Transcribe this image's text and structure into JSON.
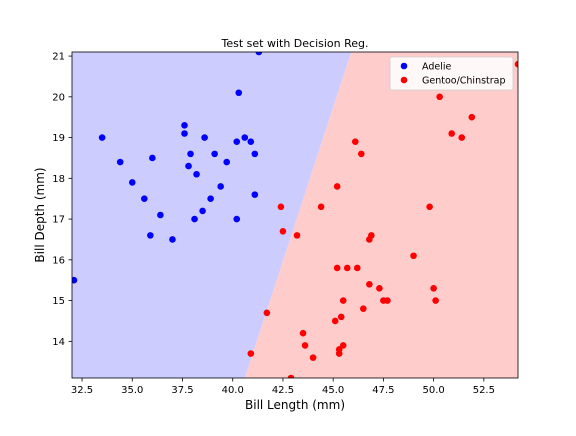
{
  "chart_data": {
    "type": "scatter",
    "title": "Test set with Decision Reg.",
    "xlabel": "Bill Length (mm)",
    "ylabel": "Bill Depth (mm)",
    "xlim": [
      32.0,
      54.2
    ],
    "ylim": [
      13.1,
      21.1
    ],
    "xticks": [
      32.5,
      35.0,
      37.5,
      40.0,
      42.5,
      45.0,
      47.5,
      50.0,
      52.5
    ],
    "xtick_labels": [
      "32.5",
      "35.0",
      "37.5",
      "40.0",
      "42.5",
      "45.0",
      "47.5",
      "50.0",
      "52.5"
    ],
    "yticks": [
      14,
      15,
      16,
      17,
      18,
      19,
      20,
      21
    ],
    "ytick_labels": [
      "14",
      "15",
      "16",
      "17",
      "18",
      "19",
      "20",
      "21"
    ],
    "legend_position": "top-right",
    "decision_regions": {
      "boundary": [
        [
          40.6,
          13.1
        ],
        [
          45.9,
          21.1
        ]
      ],
      "left_class": "Adelie",
      "right_class": "Gentoo/Chinstrap",
      "left_color": "#ccccff",
      "right_color": "#ffcccc"
    },
    "series": [
      {
        "name": "Adelie",
        "color": "#0000ff",
        "points": [
          [
            32.1,
            15.5
          ],
          [
            33.5,
            19.0
          ],
          [
            34.4,
            18.4
          ],
          [
            35.0,
            17.9
          ],
          [
            35.6,
            17.5
          ],
          [
            35.9,
            16.6
          ],
          [
            36.0,
            18.5
          ],
          [
            36.4,
            17.1
          ],
          [
            37.0,
            16.5
          ],
          [
            37.6,
            19.1
          ],
          [
            37.6,
            19.3
          ],
          [
            37.8,
            18.3
          ],
          [
            37.9,
            18.6
          ],
          [
            38.1,
            17.0
          ],
          [
            38.2,
            18.1
          ],
          [
            38.5,
            17.2
          ],
          [
            38.6,
            19.0
          ],
          [
            38.9,
            17.5
          ],
          [
            39.1,
            18.6
          ],
          [
            39.4,
            17.8
          ],
          [
            39.7,
            18.4
          ],
          [
            40.2,
            18.9
          ],
          [
            40.2,
            17.0
          ],
          [
            40.3,
            20.1
          ],
          [
            40.6,
            19.0
          ],
          [
            40.9,
            18.9
          ],
          [
            41.1,
            18.6
          ],
          [
            41.1,
            17.6
          ],
          [
            41.3,
            21.1
          ]
        ]
      },
      {
        "name": "Gentoo/Chinstrap",
        "color": "#ff0000",
        "points": [
          [
            40.9,
            13.7
          ],
          [
            41.7,
            14.7
          ],
          [
            42.4,
            17.3
          ],
          [
            42.5,
            16.7
          ],
          [
            42.9,
            13.1
          ],
          [
            43.2,
            16.6
          ],
          [
            43.5,
            14.2
          ],
          [
            43.6,
            13.9
          ],
          [
            44.0,
            13.6
          ],
          [
            44.4,
            17.3
          ],
          [
            45.1,
            14.5
          ],
          [
            45.2,
            17.8
          ],
          [
            45.2,
            15.8
          ],
          [
            45.3,
            13.8
          ],
          [
            45.3,
            13.7
          ],
          [
            45.4,
            14.6
          ],
          [
            45.5,
            15.0
          ],
          [
            45.5,
            13.9
          ],
          [
            45.7,
            15.8
          ],
          [
            46.1,
            18.9
          ],
          [
            46.2,
            15.8
          ],
          [
            46.4,
            18.6
          ],
          [
            46.5,
            14.8
          ],
          [
            46.8,
            15.4
          ],
          [
            46.8,
            16.5
          ],
          [
            46.9,
            16.6
          ],
          [
            47.3,
            15.3
          ],
          [
            47.5,
            15.0
          ],
          [
            47.7,
            15.0
          ],
          [
            49.0,
            16.1
          ],
          [
            49.8,
            17.3
          ],
          [
            50.0,
            15.3
          ],
          [
            50.1,
            15.0
          ],
          [
            50.3,
            20.0
          ],
          [
            50.9,
            19.1
          ],
          [
            51.4,
            19.0
          ],
          [
            51.9,
            19.5
          ],
          [
            54.2,
            20.8
          ]
        ]
      }
    ]
  }
}
